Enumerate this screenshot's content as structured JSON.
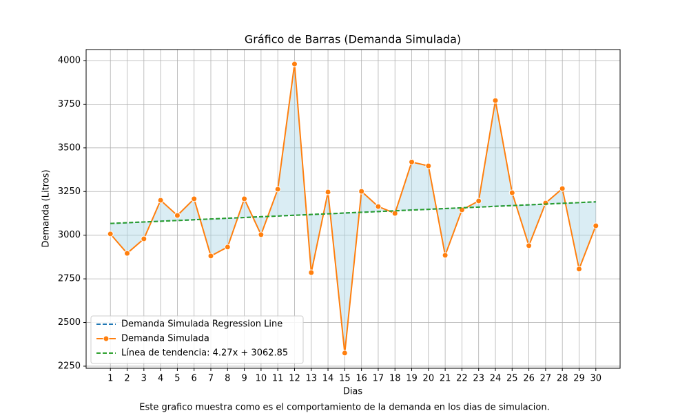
{
  "chart_data": {
    "type": "line",
    "title": "Gráfico de Barras (Demanda Simulada)",
    "x_label": "Dias",
    "y_label": "Demanda (Litros)",
    "caption": "Este grafico muestra como es el comportamiento de la demanda en los dias de simulacion.",
    "x": [
      1,
      2,
      3,
      4,
      5,
      6,
      7,
      8,
      9,
      10,
      11,
      12,
      13,
      14,
      15,
      16,
      17,
      18,
      19,
      20,
      21,
      22,
      23,
      24,
      25,
      26,
      27,
      28,
      29,
      30
    ],
    "series": [
      {
        "name": "Demanda Simulada Regression Line",
        "color": "#1f77b4",
        "dashed": true,
        "values": [
          3067.12,
          3071.39,
          3075.66,
          3079.93,
          3084.2,
          3088.47,
          3092.74,
          3097.01,
          3101.28,
          3105.55,
          3109.82,
          3114.09,
          3118.36,
          3122.63,
          3126.9,
          3131.17,
          3135.44,
          3139.71,
          3143.98,
          3148.25,
          3152.52,
          3156.79,
          3161.06,
          3165.33,
          3169.6,
          3173.87,
          3178.14,
          3182.41,
          3186.68,
          3190.95
        ]
      },
      {
        "name": "Demanda Simulada",
        "color": "#ff7f0e",
        "markers": true,
        "values": [
          3007,
          2896,
          2979,
          3200,
          3113,
          3208,
          2881,
          2932,
          3208,
          3003,
          3263,
          3980,
          2786,
          3247,
          2325,
          3251,
          3164,
          3125,
          3419,
          3397,
          2885,
          3145,
          3196,
          3771,
          3243,
          2940,
          3184,
          3267,
          2806,
          3054
        ]
      },
      {
        "name": "Línea de tendencia: 4.27x + 3062.85",
        "color": "#2ca02c",
        "dashed": true,
        "values": [
          3067.12,
          3071.39,
          3075.66,
          3079.93,
          3084.2,
          3088.47,
          3092.74,
          3097.01,
          3101.28,
          3105.55,
          3109.82,
          3114.09,
          3118.36,
          3122.63,
          3126.9,
          3131.17,
          3135.44,
          3139.71,
          3143.98,
          3148.25,
          3152.52,
          3156.79,
          3161.06,
          3165.33,
          3169.6,
          3173.87,
          3178.14,
          3182.41,
          3186.68,
          3190.95
        ]
      }
    ],
    "fill_color": "#add8e6",
    "xlim": [
      -0.45,
      31.45
    ],
    "ylim": [
      2238,
      4063
    ],
    "xticks": [
      1,
      2,
      3,
      4,
      5,
      6,
      7,
      8,
      9,
      10,
      11,
      12,
      13,
      14,
      15,
      16,
      17,
      18,
      19,
      20,
      21,
      22,
      23,
      24,
      25,
      26,
      27,
      28,
      29,
      30
    ],
    "yticks": [
      2250,
      2500,
      2750,
      3000,
      3250,
      3500,
      3750,
      4000
    ],
    "grid": true,
    "legend": "lower left"
  }
}
